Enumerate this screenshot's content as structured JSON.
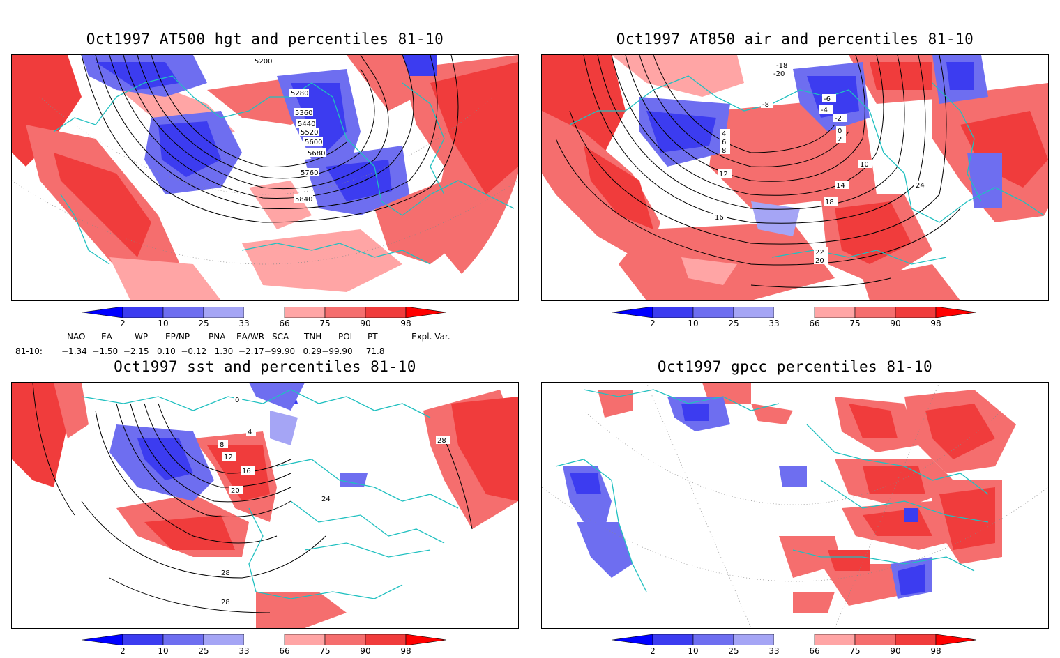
{
  "panels": [
    {
      "id": "hgt",
      "title": "Oct1997 AT500 hgt and percentiles 81-10",
      "contour_labels": [
        "5200",
        "5280",
        "5360",
        "5440",
        "5520",
        "5600",
        "5680",
        "5760",
        "5840"
      ]
    },
    {
      "id": "air",
      "title": "Oct1997 AT850 air and percentiles 81-10",
      "contour_labels": [
        "-18",
        "-20",
        "-8",
        "-6",
        "-4",
        "-2",
        "0",
        "2",
        "4",
        "6",
        "8",
        "10",
        "12",
        "14",
        "16",
        "18",
        "20",
        "22",
        "24"
      ]
    },
    {
      "id": "sst",
      "title": "Oct1997 sst and percentiles 81-10",
      "contour_labels": [
        "0",
        "4",
        "8",
        "12",
        "16",
        "20",
        "24",
        "28"
      ]
    },
    {
      "id": "gpcc",
      "title": "Oct1997 gpcc percentiles 81-10",
      "contour_labels": []
    }
  ],
  "colorbar": {
    "labels": [
      "2",
      "10",
      "25",
      "33",
      "66",
      "75",
      "90",
      "98"
    ],
    "colors": [
      "#0000ff",
      "#3c3cf0",
      "#6e6ef0",
      "#a5a5f5",
      "#ffffff",
      "#ffa5a5",
      "#f56e6e",
      "#f03c3c",
      "#ff0000"
    ]
  },
  "indices": {
    "headers": [
      "NAO",
      "EA",
      "WP",
      "EP/NP",
      "PNA",
      "EA/WR",
      "SCA",
      "TNH",
      "POL",
      "PT",
      "Expl. Var."
    ],
    "row_label": "81-10:",
    "row_values": "−1.34  −1.50  −2.15   0.10  −0.12   1.30  −2.17−99.90   0.29−99.90     71.8"
  },
  "colors": {
    "coast": "#20c0c0",
    "red": "#ff0000",
    "blue": "#0000ff"
  }
}
